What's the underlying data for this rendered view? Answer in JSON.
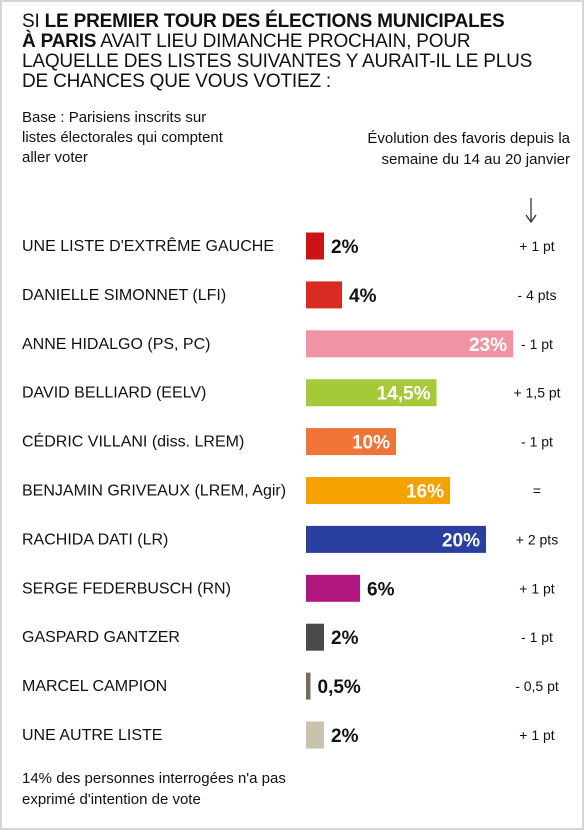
{
  "title": {
    "pre": "SI ",
    "bold1": "LE PREMIER TOUR DES ÉLECTIONS MUNICIPALES",
    "bold2": "À PARIS",
    "rest": " AVAIT LIEU DIMANCHE PROCHAIN, POUR LAQUELLE DES LISTES SUIVANTES Y AURAIT-IL LE PLUS DE CHANCES QUE VOUS VOTIEZ :"
  },
  "base_note": "Base : Parisiens inscrits sur listes électorales qui comptent aller voter",
  "evolution_header": "Évolution des favoris depuis la semaine du 14 au 20 janvier",
  "footnote": "14% des personnes interrogées n'a pas exprimé d'intention de vote",
  "chart_data": {
    "type": "bar",
    "orientation": "horizontal",
    "categories": [
      "UNE LISTE D'EXTRÊME GAUCHE",
      "DANIELLE SIMONNET (LFI)",
      "ANNE HIDALGO (PS, PC)",
      "DAVID BELLIARD (EELV)",
      "CÉDRIC VILLANI (diss. LREM)",
      "BENJAMIN GRIVEAUX (LREM, Agir)",
      "RACHIDA DATI (LR)",
      "SERGE FEDERBUSCH (RN)",
      "GASPARD GANTZER",
      "MARCEL CAMPION",
      "UNE AUTRE LISTE"
    ],
    "values": [
      2,
      4,
      23,
      14.5,
      10,
      16,
      20,
      6,
      2,
      0.5,
      2
    ],
    "value_labels": [
      "2%",
      "4%",
      "23%",
      "14,5%",
      "10%",
      "16%",
      "20%",
      "6%",
      "2%",
      "0,5%",
      "2%"
    ],
    "colors": [
      "#cc1417",
      "#d92b22",
      "#f093a3",
      "#a6c93a",
      "#ee7437",
      "#f5a200",
      "#2a3fa0",
      "#b0177e",
      "#4a4a4a",
      "#7a6a5e",
      "#c9c2ad"
    ],
    "evolution": [
      "+ 1 pt",
      "- 4 pts",
      "- 1 pt",
      "+ 1,5 pt",
      "- 1 pt",
      "=",
      "+ 2 pts",
      "+ 1 pt",
      "- 1 pt",
      "- 0,5 pt",
      "+ 1 pt"
    ],
    "unit": "%",
    "xlim": [
      0,
      23
    ]
  }
}
